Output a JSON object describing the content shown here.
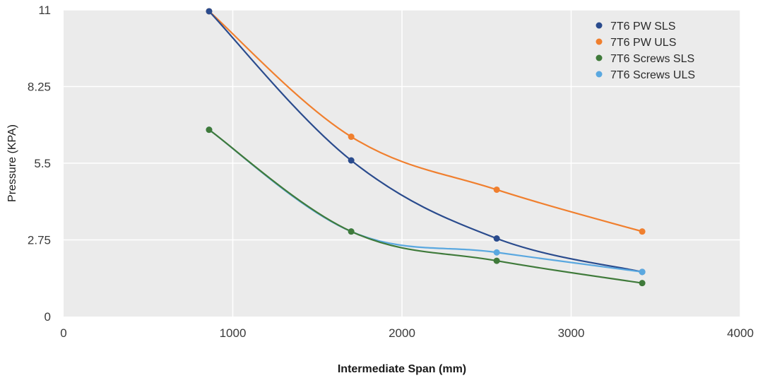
{
  "chart_data": {
    "type": "line",
    "title": "",
    "xlabel": "Intermediate Span (mm)",
    "ylabel": "Pressure (KPA)",
    "xlim": [
      0,
      4000
    ],
    "ylim": [
      0,
      11
    ],
    "xticks": [
      0,
      1000,
      2000,
      3000,
      4000
    ],
    "yticks": [
      0,
      2.75,
      5.5,
      8.25,
      11
    ],
    "xtick_labels": [
      "0",
      "1000",
      "2000",
      "3000",
      "4000"
    ],
    "ytick_labels": [
      "0",
      "2.75",
      "5.5",
      "8.25",
      "11"
    ],
    "grid": true,
    "legend_position": "top-right",
    "series": [
      {
        "name": "7T6 PW SLS",
        "color": "#2a4b8d",
        "x": [
          860,
          1700,
          2560,
          3420
        ],
        "y": [
          10.95,
          5.6,
          2.8,
          1.6
        ]
      },
      {
        "name": "7T6 PW ULS",
        "color": "#f07f2e",
        "x": [
          860,
          1700,
          2560,
          3420
        ],
        "y": [
          10.95,
          6.45,
          4.55,
          3.05
        ]
      },
      {
        "name": "7T6 Screws SLS",
        "color": "#3f7a3a",
        "x": [
          860,
          1700,
          2560,
          3420
        ],
        "y": [
          6.7,
          3.05,
          2.0,
          1.2
        ]
      },
      {
        "name": "7T6 Screws ULS",
        "color": "#5aa8e0",
        "x": [
          860,
          1700,
          2560,
          3420
        ],
        "y": [
          6.7,
          3.05,
          2.3,
          1.6
        ]
      }
    ]
  }
}
